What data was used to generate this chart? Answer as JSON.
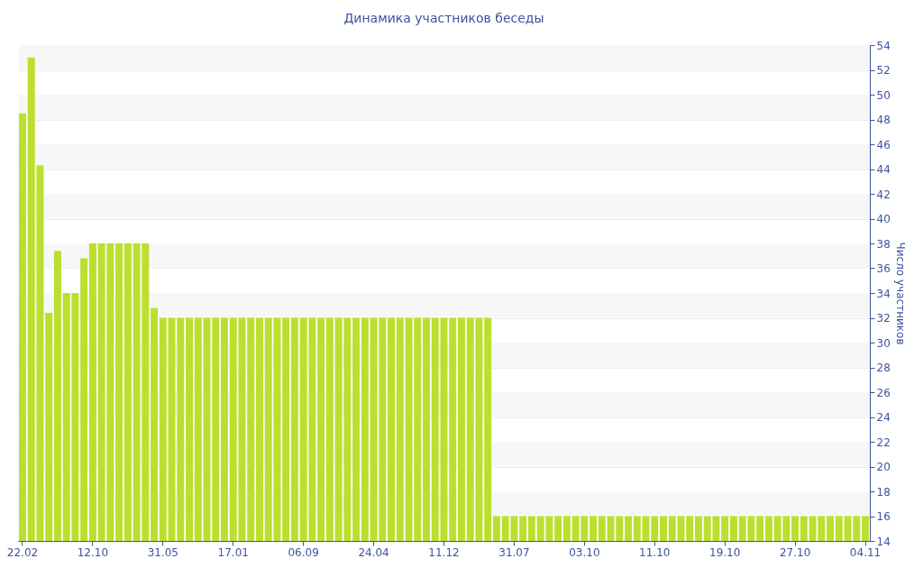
{
  "chart_data": {
    "type": "bar",
    "title": "Динамика участников беседы",
    "y2label": "Число участников",
    "categories": [
      "22.02",
      null,
      null,
      null,
      null,
      null,
      null,
      null,
      "12.10",
      null,
      null,
      null,
      null,
      null,
      null,
      null,
      "31.05",
      null,
      null,
      null,
      null,
      null,
      null,
      null,
      "17.01",
      null,
      null,
      null,
      null,
      null,
      null,
      null,
      "06.09",
      null,
      null,
      null,
      null,
      null,
      null,
      null,
      "24.04",
      null,
      null,
      null,
      null,
      null,
      null,
      null,
      "11.12",
      null,
      null,
      null,
      null,
      null,
      null,
      null,
      "31.07",
      null,
      null,
      null,
      null,
      null,
      null,
      null,
      "03.10",
      null,
      null,
      null,
      null,
      null,
      null,
      null,
      "11.10",
      null,
      null,
      null,
      null,
      null,
      null,
      null,
      "19.10",
      null,
      null,
      null,
      null,
      null,
      null,
      null,
      "27.10",
      null,
      null,
      null,
      null,
      null,
      null,
      null,
      "04.11"
    ],
    "series": [
      {
        "color": "#bcdf2f",
        "axis": "y2",
        "values": [
          48.5,
          53,
          44.3,
          32.4,
          37.4,
          34,
          34,
          36.8,
          38,
          38,
          38,
          38,
          38,
          38,
          38,
          32.8,
          32,
          32,
          32,
          32,
          32,
          32,
          32,
          32,
          32,
          32,
          32,
          32,
          32,
          32,
          32,
          32,
          32,
          32,
          32,
          32,
          32,
          32,
          32,
          32,
          32,
          32,
          32,
          32,
          32,
          32,
          32,
          32,
          32,
          32,
          32,
          32,
          32,
          32,
          16,
          16,
          16,
          16,
          16,
          16,
          16,
          16,
          16,
          16,
          16,
          16,
          16,
          16,
          16,
          16,
          16,
          16,
          16,
          16,
          16,
          16,
          16,
          16,
          16,
          16,
          16,
          16,
          16,
          16,
          16,
          16,
          16,
          16,
          16,
          16,
          16,
          16,
          16,
          16,
          16,
          16,
          16
        ]
      }
    ],
    "y2lim": [
      14,
      54
    ],
    "y2ticks": [
      14,
      16,
      18,
      20,
      22,
      24,
      26,
      28,
      30,
      32,
      34,
      36,
      38,
      40,
      42,
      44,
      46,
      48,
      50,
      52,
      54
    ],
    "grid": "y"
  }
}
